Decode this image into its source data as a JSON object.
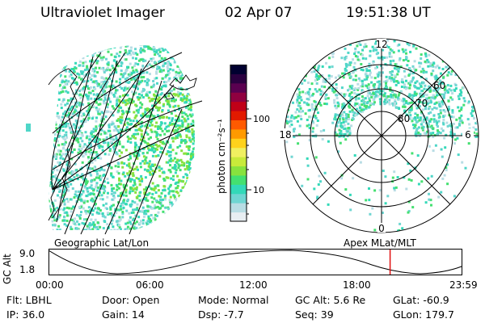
{
  "header": {
    "instrument": "Ultraviolet Imager",
    "date": "02 Apr 07",
    "time": "19:51:38 UT"
  },
  "colorbar": {
    "unit_label": "photon cm⁻²s⁻¹",
    "ticks": [
      "100",
      "10"
    ],
    "colors": [
      "#e8eef2",
      "#b8dde4",
      "#6fd6d2",
      "#33d9b8",
      "#44e070",
      "#88e23e",
      "#c8ea3a",
      "#f0f060",
      "#ffd21c",
      "#ff9a00",
      "#ff5a00",
      "#e21a00",
      "#c00018",
      "#900040",
      "#5a0050",
      "#2a0040",
      "#000030"
    ]
  },
  "left_map": {
    "label": "Geographic Lat/Lon"
  },
  "polar_plot": {
    "label": "Apex MLat/MLT",
    "mlt_labels": {
      "top": "12",
      "left": "18",
      "right": "6",
      "bottom": "0"
    },
    "lat_labels": [
      "60",
      "70",
      "80"
    ]
  },
  "altitude_plot": {
    "ylabel": "GC Alt",
    "ymax": "9.0",
    "ymin": "1.8",
    "x_ticks": [
      "00:00",
      "06:00",
      "12:00",
      "18:00",
      "23:59"
    ],
    "current_time_fraction": 0.826
  },
  "info": {
    "filter": "Flt: LBHL",
    "ip": "IP: 36.0",
    "door": "Door: Open",
    "gain": "Gain: 14",
    "mode": "Mode: Normal",
    "dsp": "Dsp:    -7.7",
    "gc_alt": "GC Alt: 5.6 Re",
    "seq": "Seq: 39",
    "glat": "GLat: -60.9",
    "glon": "GLon: 179.7"
  }
}
